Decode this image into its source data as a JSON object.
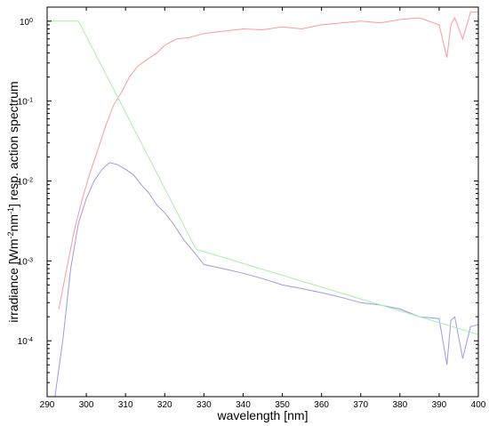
{
  "chart_data": {
    "type": "line",
    "xlabel": "wavelength [nm]",
    "ylabel_pre": "irradiance [Wm",
    "ylabel_sup1": "-2",
    "ylabel_mid": "nm",
    "ylabel_sup2": "-1",
    "ylabel_post": "]   resp.   action spectrum",
    "xlim": [
      290,
      400
    ],
    "ylim": [
      2e-05,
      1.5
    ],
    "yscale": "log",
    "grid": false,
    "xticks": [
      290,
      300,
      310,
      320,
      330,
      340,
      350,
      360,
      370,
      380,
      390,
      400
    ],
    "yticks": [
      {
        "value": 1,
        "base": "10",
        "exp": "0"
      },
      {
        "value": 0.1,
        "base": "10",
        "exp": "-1"
      },
      {
        "value": 0.01,
        "base": "10",
        "exp": "-2"
      },
      {
        "value": 0.001,
        "base": "10",
        "exp": "-3"
      },
      {
        "value": 0.0001,
        "base": "10",
        "exp": "-4"
      }
    ],
    "series": [
      {
        "color": "#ff9a9a",
        "x": [
          293,
          295,
          297,
          299,
          301,
          303,
          305,
          307,
          309,
          311,
          313,
          315,
          318,
          320,
          323,
          326,
          330,
          335,
          340,
          345,
          350,
          355,
          360,
          365,
          370,
          375,
          380,
          385,
          390,
          392,
          393,
          394,
          396,
          398,
          400
        ],
        "y": [
          0.00025,
          0.0008,
          0.0025,
          0.006,
          0.013,
          0.025,
          0.05,
          0.09,
          0.13,
          0.2,
          0.27,
          0.32,
          0.4,
          0.5,
          0.6,
          0.62,
          0.7,
          0.75,
          0.8,
          0.78,
          0.85,
          0.8,
          0.9,
          0.95,
          1.0,
          0.95,
          1.05,
          1.1,
          0.9,
          0.35,
          0.9,
          1.1,
          0.6,
          1.3,
          1.3
        ]
      },
      {
        "color": "#9a9aee",
        "x": [
          292,
          294,
          296,
          298,
          300,
          302,
          304,
          306,
          308,
          310,
          312,
          314,
          316,
          318,
          320,
          322,
          325,
          328,
          330,
          335,
          340,
          345,
          350,
          355,
          360,
          365,
          370,
          375,
          380,
          385,
          390,
          392,
          393,
          394,
          396,
          398,
          400
        ],
        "y": [
          2e-05,
          0.0001,
          0.0008,
          0.003,
          0.006,
          0.01,
          0.014,
          0.017,
          0.016,
          0.014,
          0.012,
          0.009,
          0.007,
          0.005,
          0.004,
          0.003,
          0.0018,
          0.0012,
          0.0009,
          0.0008,
          0.0007,
          0.0006,
          0.0005,
          0.00045,
          0.0004,
          0.00035,
          0.0003,
          0.00028,
          0.00025,
          0.0002,
          0.00019,
          5e-05,
          0.00018,
          0.0002,
          6e-05,
          0.00015,
          0.00016
        ]
      },
      {
        "color": "#a8f0a8",
        "x": [
          290,
          298,
          328,
          400
        ],
        "y": [
          1.0,
          1.0,
          0.0014,
          0.00012
        ]
      }
    ]
  }
}
